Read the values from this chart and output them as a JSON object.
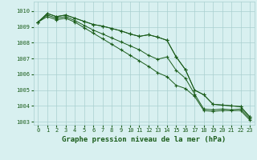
{
  "background_color": "#d8f0f0",
  "grid_color": "#aad0d0",
  "line_color": "#1a5c1a",
  "xlabel": "Graphe pression niveau de la mer (hPa)",
  "xlim": [
    -0.5,
    23.5
  ],
  "ylim": [
    1002.8,
    1010.6
  ],
  "yticks": [
    1003,
    1004,
    1005,
    1006,
    1007,
    1008,
    1009,
    1010
  ],
  "xticks": [
    0,
    1,
    2,
    3,
    4,
    5,
    6,
    7,
    8,
    9,
    10,
    11,
    12,
    13,
    14,
    15,
    16,
    17,
    18,
    19,
    20,
    21,
    22,
    23
  ],
  "series": [
    [
      1009.3,
      1009.85,
      1009.65,
      1009.75,
      1009.55,
      1009.35,
      1009.15,
      1009.05,
      1008.9,
      1008.75,
      1008.55,
      1008.4,
      1008.5,
      1008.35,
      1008.15,
      1007.1,
      1006.3,
      1005.0,
      1004.7,
      1004.1,
      1004.05,
      1004.0,
      1003.95,
      1003.3
    ],
    [
      1009.3,
      1009.85,
      1009.65,
      1009.75,
      1009.55,
      1009.35,
      1009.15,
      1009.05,
      1008.9,
      1008.75,
      1008.55,
      1008.4,
      1008.5,
      1008.35,
      1008.15,
      1007.1,
      1006.3,
      1005.0,
      1004.7,
      1004.1,
      1004.05,
      1004.0,
      1003.95,
      1003.3
    ],
    [
      1009.3,
      1009.75,
      1009.55,
      1009.65,
      1009.4,
      1009.1,
      1008.8,
      1008.55,
      1008.3,
      1008.05,
      1007.8,
      1007.55,
      1007.2,
      1006.95,
      1007.1,
      1006.25,
      1005.75,
      1004.75,
      1003.8,
      1003.75,
      1003.8,
      1003.75,
      1003.8,
      1003.2
    ],
    [
      1009.3,
      1009.65,
      1009.45,
      1009.55,
      1009.3,
      1008.95,
      1008.6,
      1008.25,
      1007.9,
      1007.55,
      1007.2,
      1006.85,
      1006.5,
      1006.1,
      1005.85,
      1005.3,
      1005.1,
      1004.6,
      1003.7,
      1003.65,
      1003.7,
      1003.7,
      1003.7,
      1003.1
    ]
  ]
}
